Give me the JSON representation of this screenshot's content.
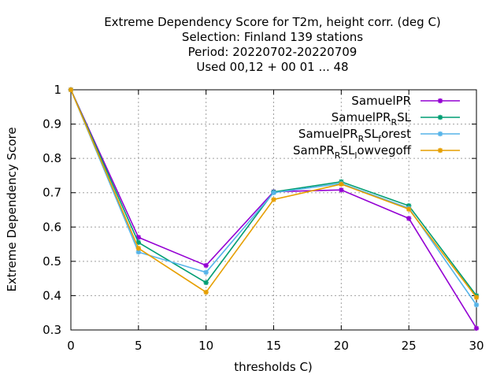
{
  "chart_data": {
    "type": "line",
    "title_lines": [
      "Extreme Dependency Score  for T2m, height corr. (deg C)",
      "Selection: Finland    139 stations",
      "Period: 20220702-20220709",
      "Used  00,12  + 00 01 ... 48"
    ],
    "xlabel": "thresholds C)",
    "ylabel": "Extreme Dependency Score",
    "xlim": [
      0,
      30
    ],
    "ylim": [
      0.3,
      1.0
    ],
    "xticks": [
      0,
      5,
      10,
      15,
      20,
      25,
      30
    ],
    "yticks": [
      0.3,
      0.4,
      0.5,
      0.6,
      0.7,
      0.8,
      0.9,
      1.0
    ],
    "ytick_labels": [
      "0.3",
      "0.4",
      "0.5",
      "0.6",
      "0.7",
      "0.8",
      "0.9",
      "1"
    ],
    "grid": true,
    "legend_position": "top-right",
    "x": [
      0,
      5,
      10,
      15,
      20,
      25,
      30
    ],
    "series": [
      {
        "name": "SamuelPR",
        "legend": [
          {
            "t": "SamuelPR",
            "sub": false
          }
        ],
        "color": "#9400d3",
        "values": [
          1.0,
          0.57,
          0.488,
          0.703,
          0.708,
          0.625,
          0.305
        ]
      },
      {
        "name": "SamuelPR_RSL",
        "legend": [
          {
            "t": "SamuelPR",
            "sub": false
          },
          {
            "t": "R",
            "sub": true
          },
          {
            "t": "SL",
            "sub": false
          }
        ],
        "color": "#009e73",
        "values": [
          1.0,
          0.555,
          0.438,
          0.702,
          0.732,
          0.662,
          0.4
        ]
      },
      {
        "name": "SamuelPR_RSL_forest",
        "legend": [
          {
            "t": "SamuelPR",
            "sub": false
          },
          {
            "t": "R",
            "sub": true
          },
          {
            "t": "SL",
            "sub": false
          },
          {
            "t": "f",
            "sub": true
          },
          {
            "t": "orest",
            "sub": false
          }
        ],
        "color": "#56b4e9",
        "values": [
          1.0,
          0.527,
          0.468,
          0.7,
          0.727,
          0.655,
          0.373
        ]
      },
      {
        "name": "SamPR_RSL_lowvegoff",
        "legend": [
          {
            "t": "SamPR",
            "sub": false
          },
          {
            "t": "R",
            "sub": true
          },
          {
            "t": "SL",
            "sub": false
          },
          {
            "t": "l",
            "sub": true
          },
          {
            "t": "owvegoff",
            "sub": false
          }
        ],
        "color": "#e69f00",
        "values": [
          1.0,
          0.538,
          0.41,
          0.68,
          0.725,
          0.652,
          0.395
        ]
      }
    ]
  }
}
